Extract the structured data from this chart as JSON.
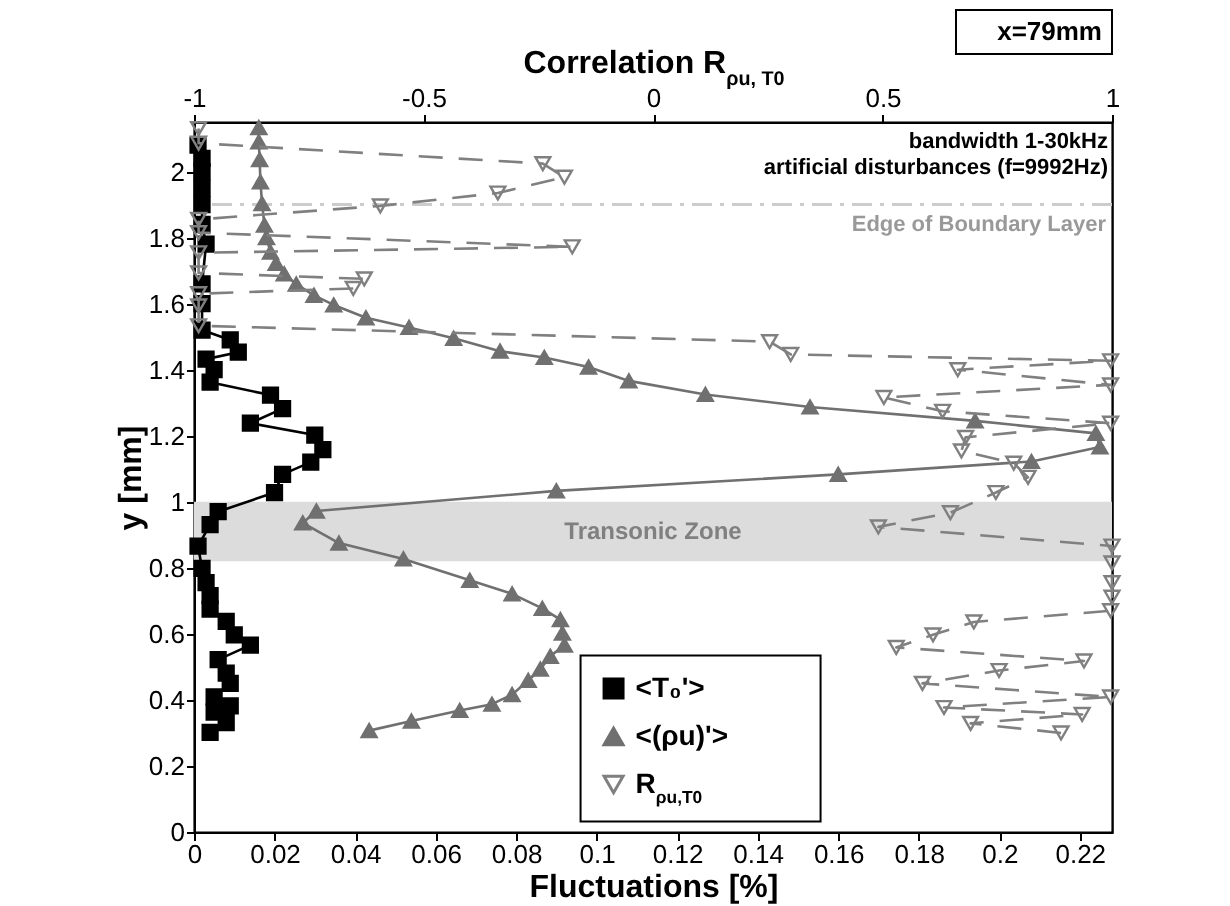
{
  "chart_data": {
    "type": "line",
    "xlabel": "Fluctuations [%]",
    "ylabel": "y [mm]",
    "x2label": "Correlation R$_{ρu, T0}$",
    "xlim": [
      0,
      0.228
    ],
    "xticks": [
      0,
      0.02,
      0.04,
      0.06,
      0.08,
      0.1,
      0.12,
      0.14,
      0.16,
      0.18,
      0.2,
      0.22
    ],
    "x2lim": [
      -1,
      1
    ],
    "x2ticks": [
      -1,
      -0.5,
      0,
      0.5,
      1
    ],
    "ylim": [
      0,
      2.15
    ],
    "yticks": [
      0,
      0.2,
      0.4,
      0.6,
      0.8,
      1,
      1.2,
      1.4,
      1.6,
      1.8,
      2
    ],
    "legend": "bottom",
    "series": [
      {
        "name": "<T₀'>",
        "color": "#000000",
        "marker": "square",
        "line_style": "solid",
        "x": [
          0.004,
          0.008,
          0.005,
          0.009,
          0.005,
          0.009,
          0.008,
          0.006,
          0.014,
          0.01,
          0.008,
          0.004,
          0.004,
          0.003,
          0.002,
          0.001,
          0.004,
          0.006,
          0.02,
          0.022,
          0.029,
          0.032,
          0.03,
          0.014,
          0.022,
          0.019,
          0.004,
          0.005,
          0.003,
          0.011,
          0.009,
          0.002,
          0.002,
          0.002,
          0.003,
          0.002,
          0.002,
          0.002,
          0.002,
          0.002,
          0.001
        ],
        "values": [
          0.302,
          0.331,
          0.363,
          0.382,
          0.409,
          0.45,
          0.481,
          0.522,
          0.566,
          0.597,
          0.638,
          0.675,
          0.716,
          0.755,
          0.798,
          0.866,
          0.931,
          0.97,
          1.028,
          1.083,
          1.12,
          1.158,
          1.202,
          1.238,
          1.282,
          1.323,
          1.362,
          1.4,
          1.432,
          1.453,
          1.49,
          1.52,
          1.6,
          1.66,
          1.78,
          1.84,
          1.9,
          1.95,
          2,
          2.04,
          2.08
        ]
      },
      {
        "name": "<(ρu)'>",
        "color": "#707070",
        "marker": "triangle",
        "line_style": "solid",
        "x": [
          0.0435,
          0.054,
          0.066,
          0.074,
          0.079,
          0.083,
          0.086,
          0.0885,
          0.092,
          0.0915,
          0.091,
          0.0865,
          0.079,
          0.0685,
          0.052,
          0.036,
          0.027,
          0.0304,
          0.09,
          0.16,
          0.208,
          0.225,
          0.224,
          0.194,
          0.153,
          0.127,
          0.108,
          0.098,
          0.087,
          0.076,
          0.0645,
          0.0534,
          0.0427,
          0.0347,
          0.0298,
          0.0254,
          0.0224,
          0.0204,
          0.019,
          0.018,
          0.0175,
          0.0169,
          0.0165,
          0.0163,
          0.0161,
          0.0161
        ],
        "values": [
          0.307,
          0.336,
          0.368,
          0.387,
          0.416,
          0.459,
          0.493,
          0.532,
          0.566,
          0.602,
          0.643,
          0.677,
          0.721,
          0.762,
          0.827,
          0.875,
          0.936,
          0.972,
          1.033,
          1.083,
          1.122,
          1.166,
          1.207,
          1.245,
          1.287,
          1.325,
          1.366,
          1.408,
          1.437,
          1.456,
          1.495,
          1.528,
          1.557,
          1.596,
          1.625,
          1.659,
          1.69,
          1.722,
          1.756,
          1.8,
          1.838,
          1.903,
          1.969,
          2.036,
          2.09,
          2.133
        ]
      },
      {
        "name": "R$_{ρu,T0}$",
        "color": "#808080",
        "marker": "triangle-down-open",
        "line_style": "dashed",
        "axis": "x2",
        "x": [
          0.889,
          0.692,
          0.935,
          0.634,
          0.997,
          0.587,
          0.754,
          0.939,
          0.53,
          0.61,
          0.699,
          0.997,
          1,
          1,
          1,
          1,
          0.491,
          0.648,
          0.747,
          0.817,
          0.786,
          0.672,
          0.681,
          0.997,
          0.631,
          0.503,
          0.997,
          0.664,
          0.997,
          0.3,
          0.254,
          -0.99,
          -0.99,
          -0.99,
          -0.653,
          -0.629,
          -0.99,
          -0.99,
          -0.176,
          -0.99,
          -0.99,
          -0.594,
          -0.338,
          -0.193,
          -0.24,
          -0.99,
          -0.99
        ],
        "values": [
          0.3,
          0.329,
          0.356,
          0.377,
          0.409,
          0.45,
          0.489,
          0.518,
          0.559,
          0.597,
          0.636,
          0.67,
          0.711,
          0.755,
          0.815,
          0.866,
          0.924,
          0.967,
          1.028,
          1.074,
          1.117,
          1.154,
          1.195,
          1.238,
          1.274,
          1.316,
          1.354,
          1.4,
          1.427,
          1.446,
          1.485,
          1.533,
          1.593,
          1.63,
          1.646,
          1.675,
          1.693,
          1.754,
          1.772,
          1.815,
          1.855,
          1.896,
          1.935,
          1.983,
          2.024,
          2.086,
          2.13
        ]
      }
    ],
    "bands": [
      {
        "axis": "y",
        "from": 0.82,
        "to": 1,
        "label": "Transonic Zone",
        "color": "#dcdcdc"
      }
    ],
    "ref_lines": [
      {
        "axis": "y",
        "value": 1.9,
        "label": "Edge of Boundary Layer",
        "color": "#cccccc",
        "line_style": "dashdot"
      }
    ],
    "annotations": [
      "x=79mm",
      "bandwidth 1-30kHz",
      "artificial disturbances (f=9992Hz)"
    ]
  }
}
